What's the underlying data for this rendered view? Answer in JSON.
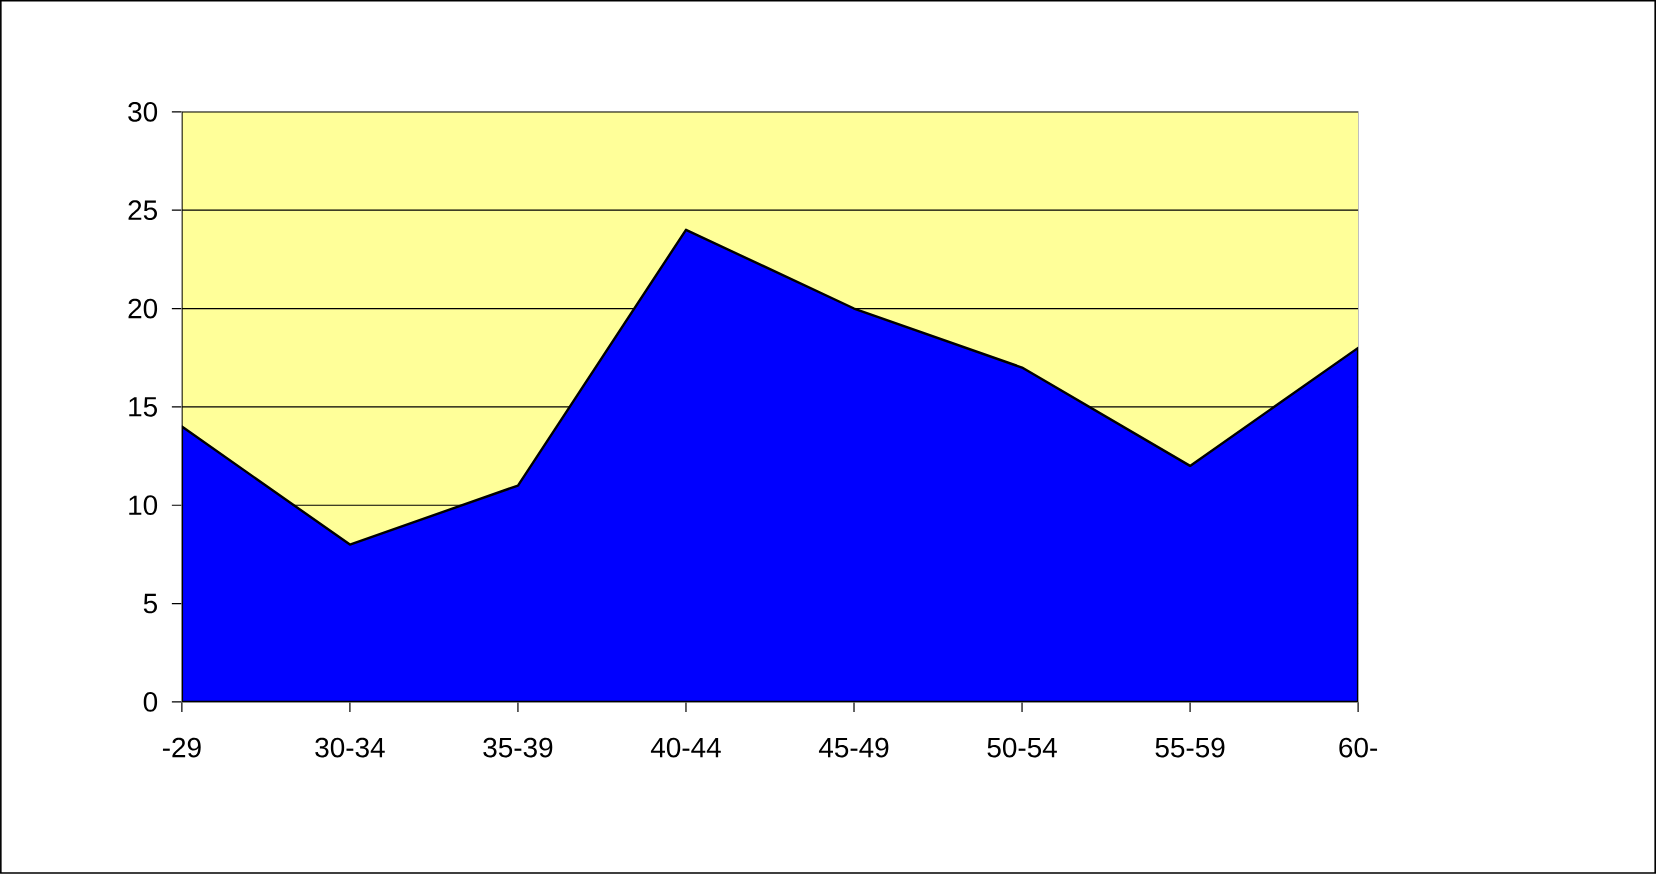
{
  "chart_data": {
    "type": "area",
    "categories": [
      "-29",
      "30-34",
      "35-39",
      "40-44",
      "45-49",
      "50-54",
      "55-59",
      "60-"
    ],
    "values": [
      14,
      8,
      11,
      24,
      20,
      17,
      12,
      18
    ],
    "color": "#0000ff",
    "bands": [
      {
        "axis": "y",
        "from": 0,
        "to": 30,
        "color": "#ffff99"
      }
    ],
    "ylim": [
      0,
      30
    ],
    "yticks": [
      0,
      5,
      10,
      15,
      20,
      25,
      30
    ],
    "grid": "y"
  }
}
